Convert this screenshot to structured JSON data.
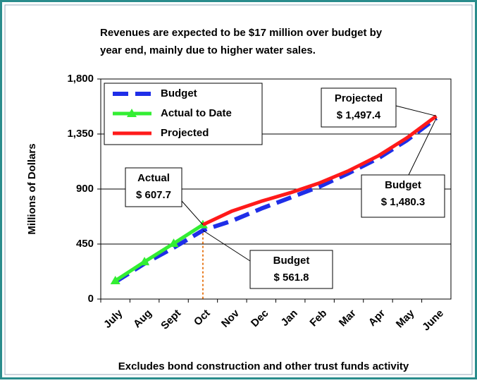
{
  "chart_data": {
    "type": "line",
    "title": [
      "Revenues are expected to be $17 million over budget by",
      "year end, mainly due to higher water sales."
    ],
    "y_label": "Millions of Dollars",
    "footnote": "Excludes bond construction and other trust funds activity",
    "categories": [
      "July",
      "Aug",
      "Sept",
      "Oct",
      "Nov",
      "Dec",
      "Jan",
      "Feb",
      "Mar",
      "Apr",
      "May",
      "June"
    ],
    "series": [
      {
        "name": "Budget",
        "color": "#1f2ee8",
        "dash": true,
        "values": [
          140,
          290,
          420,
          561.8,
          640,
          740,
          830,
          920,
          1030,
          1150,
          1300,
          1480.3
        ]
      },
      {
        "name": "Actual to Date",
        "color": "#33ee33",
        "marker": "triangle",
        "values": [
          150,
          305,
          455,
          607.7,
          null,
          null,
          null,
          null,
          null,
          null,
          null,
          null
        ]
      },
      {
        "name": "Projected",
        "color": "#ff1a1a",
        "values": [
          null,
          null,
          null,
          607.7,
          720,
          800,
          870,
          950,
          1050,
          1170,
          1320,
          1497.4
        ]
      }
    ],
    "ylim": [
      0,
      1800
    ],
    "yticks": [
      0,
      450,
      900,
      {
        "value": 1350,
        "label": "1,350"
      },
      {
        "value": 1800,
        "label": "1,800"
      }
    ],
    "grid": true,
    "legend": "upper left",
    "annotations": [
      {
        "lines": [
          "Projected",
          "$ 1,497.4"
        ]
      },
      {
        "lines": [
          "Actual",
          "$ 607.7"
        ]
      },
      {
        "lines": [
          "Budget",
          "$ 561.8"
        ]
      },
      {
        "lines": [
          "Budget",
          "$ 1,480.3"
        ]
      }
    ]
  }
}
